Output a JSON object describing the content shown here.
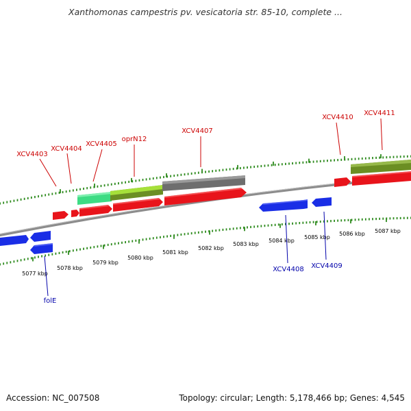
{
  "title": "Xanthomonas campestris pv. vesicatoria str. 85-10, complete ...",
  "footer": {
    "accession": "Accession: NC_007508",
    "topology": "Topology: circular; Length: 5,178,466 bp; Genes: 4,545"
  },
  "colors": {
    "forward_gene": "#e8141b",
    "reverse_gene": "#1a2ee6",
    "label_forward": "#cc0000",
    "label_reverse": "#0000aa",
    "tick": "#2e8b1e",
    "backbone": "#8c8c8c",
    "feature_gray": "#6e6e6e",
    "feature_olive": "#6b8e23",
    "feature_lime": "#9acd32",
    "feature_teal": "#3ddc84"
  },
  "kbp_ticks": [
    "5077 kbp",
    "5078 kbp",
    "5079 kbp",
    "5080 kbp",
    "5081 kbp",
    "5082 kbp",
    "5083 kbp",
    "5084 kbp",
    "5085 kbp",
    "5086 kbp",
    "5087 kbp"
  ],
  "forward_labels": [
    "XCV4403",
    "XCV4404",
    "XCV4405",
    "oprN12",
    "XCV4407",
    "XCV4410",
    "XCV4411"
  ],
  "reverse_labels": [
    "folE",
    "XCV4408",
    "XCV4409"
  ]
}
